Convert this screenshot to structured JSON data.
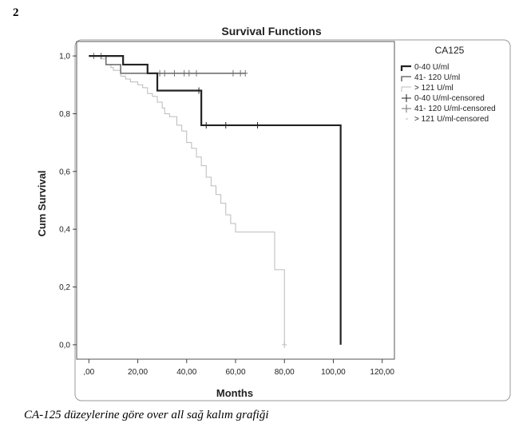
{
  "figure_number": "2",
  "caption": "CA-125 düzeylerine göre over all sağ kalım grafiği",
  "chart_data": {
    "type": "line",
    "title": "Survival Functions",
    "xlabel": "Months",
    "ylabel": "Cum Survival",
    "xlim": [
      -5,
      125
    ],
    "ylim": [
      -0.05,
      1.05
    ],
    "x_ticks": [
      0,
      20,
      40,
      60,
      80,
      100,
      120
    ],
    "x_tick_labels": [
      ",00",
      "20,00",
      "40,00",
      "60,00",
      "80,00",
      "100,00",
      "120,00"
    ],
    "y_ticks": [
      0,
      0.2,
      0.4,
      0.6,
      0.8,
      1.0
    ],
    "y_tick_labels": [
      "0,0",
      "0,2",
      "0,4",
      "0,6",
      "0,8",
      "1,0"
    ],
    "grid": false,
    "legend": {
      "title": "CA125",
      "placement": "right",
      "entries": [
        "0-40 U/ml",
        "41- 120 U/ml",
        "> 121 U/ml",
        "0-40 U/ml-censored",
        "41- 120 U/ml-censored",
        "> 121 U/ml-censored"
      ]
    },
    "series": [
      {
        "name": "0-40 U/ml",
        "color": "#222222",
        "steps": [
          [
            0,
            1.0
          ],
          [
            14,
            0.97
          ],
          [
            24,
            0.94
          ],
          [
            28,
            0.88
          ],
          [
            46,
            0.76
          ],
          [
            103,
            0.76
          ],
          [
            103,
            0.0
          ]
        ],
        "censored": [
          [
            45,
            0.88
          ],
          [
            48,
            0.76
          ],
          [
            56,
            0.76
          ],
          [
            69,
            0.76
          ]
        ]
      },
      {
        "name": "41- 120 U/ml",
        "color": "#707070",
        "steps": [
          [
            0,
            1.0
          ],
          [
            7,
            0.97
          ],
          [
            13,
            0.94
          ],
          [
            64,
            0.94
          ]
        ],
        "censored": [
          [
            2,
            1.0
          ],
          [
            5,
            1.0
          ],
          [
            29,
            0.94
          ],
          [
            31,
            0.94
          ],
          [
            35,
            0.94
          ],
          [
            39,
            0.94
          ],
          [
            41,
            0.94
          ],
          [
            44,
            0.94
          ],
          [
            59,
            0.94
          ],
          [
            62,
            0.94
          ],
          [
            64,
            0.94
          ]
        ]
      },
      {
        "name": "> 121 U/ml",
        "color": "#bbbbbb",
        "steps": [
          [
            0,
            1.0
          ],
          [
            5,
            0.99
          ],
          [
            7,
            0.97
          ],
          [
            9,
            0.96
          ],
          [
            10,
            0.95
          ],
          [
            13,
            0.93
          ],
          [
            15,
            0.92
          ],
          [
            17,
            0.91
          ],
          [
            20,
            0.9
          ],
          [
            22,
            0.89
          ],
          [
            24,
            0.87
          ],
          [
            26,
            0.86
          ],
          [
            28,
            0.84
          ],
          [
            30,
            0.82
          ],
          [
            31,
            0.8
          ],
          [
            33,
            0.79
          ],
          [
            36,
            0.76
          ],
          [
            38,
            0.74
          ],
          [
            40,
            0.7
          ],
          [
            42,
            0.68
          ],
          [
            44,
            0.65
          ],
          [
            46,
            0.62
          ],
          [
            48,
            0.58
          ],
          [
            50,
            0.55
          ],
          [
            52,
            0.52
          ],
          [
            54,
            0.49
          ],
          [
            56,
            0.45
          ],
          [
            58,
            0.42
          ],
          [
            60,
            0.39
          ],
          [
            65,
            0.39
          ],
          [
            76,
            0.39
          ],
          [
            76,
            0.26
          ],
          [
            80,
            0.26
          ],
          [
            80,
            0.0
          ]
        ],
        "censored": [
          [
            80,
            0.0
          ]
        ]
      }
    ]
  }
}
